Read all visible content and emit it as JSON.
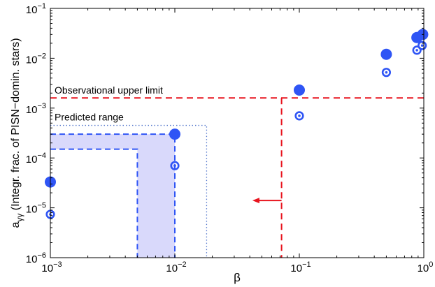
{
  "chart_data": {
    "type": "scatter",
    "xlabel": "β",
    "ylabel_main": "a",
    "ylabel_sub": "γγ",
    "ylabel_rest": " (Integr. frac. of PISN−domin. stars)",
    "xscale": "log",
    "yscale": "log",
    "xlim": [
      0.001,
      1
    ],
    "ylim": [
      1e-06,
      0.1
    ],
    "x_ticks": [
      {
        "value": 0.001,
        "base": "10",
        "exp": "−3"
      },
      {
        "value": 0.01,
        "base": "10",
        "exp": "−2"
      },
      {
        "value": 0.1,
        "base": "10",
        "exp": "−1"
      },
      {
        "value": 1,
        "base": "10",
        "exp": "0"
      }
    ],
    "y_ticks": [
      {
        "value": 1e-06,
        "base": "10",
        "exp": "−6"
      },
      {
        "value": 1e-05,
        "base": "10",
        "exp": "−5"
      },
      {
        "value": 0.0001,
        "base": "10",
        "exp": "−4"
      },
      {
        "value": 0.001,
        "base": "10",
        "exp": "−3"
      },
      {
        "value": 0.01,
        "base": "10",
        "exp": "−2"
      },
      {
        "value": 0.1,
        "base": "10",
        "exp": "−1"
      }
    ],
    "series": [
      {
        "marker": "filled-circle",
        "color": "#2f55f5",
        "points": [
          {
            "x": 0.001,
            "y": 3.3e-05
          },
          {
            "x": 0.01,
            "y": 0.0003
          },
          {
            "x": 0.1,
            "y": 0.0023
          },
          {
            "x": 0.5,
            "y": 0.012
          },
          {
            "x": 0.88,
            "y": 0.026
          },
          {
            "x": 0.98,
            "y": 0.03
          }
        ]
      },
      {
        "marker": "ring-dot",
        "color": "#2f55f5",
        "points": [
          {
            "x": 0.001,
            "y": 7.4e-06
          },
          {
            "x": 0.01,
            "y": 7e-05
          },
          {
            "x": 0.1,
            "y": 0.0007
          },
          {
            "x": 0.5,
            "y": 0.0052
          },
          {
            "x": 0.88,
            "y": 0.0145
          },
          {
            "x": 0.97,
            "y": 0.018
          }
        ]
      }
    ],
    "upper_limit": {
      "label": "Observational upper limit",
      "y": 0.0016,
      "x_vertical": 0.072,
      "color": "#e8141e"
    },
    "arrow": {
      "x_from": 0.072,
      "x_to": 0.042,
      "y": 1.4e-05,
      "color": "#e8141e"
    },
    "predicted_range": {
      "label": "Predicted range",
      "dotted": {
        "x_max": 0.018,
        "y_max": 0.00045
      },
      "band_outer": {
        "x_max": 0.01,
        "y_max": 0.0003
      },
      "band_inner": {
        "x_max": 0.005,
        "y_max": 0.00015
      },
      "fill": "#d9d9fb",
      "line_color": "#2f55f5"
    }
  }
}
